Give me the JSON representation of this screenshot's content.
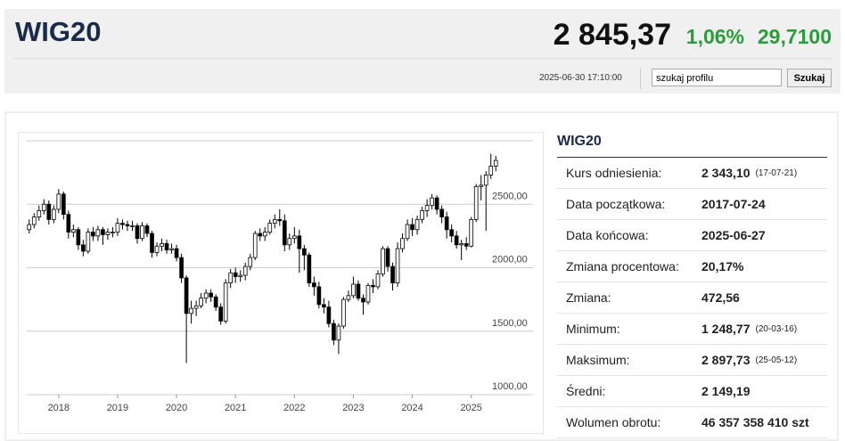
{
  "header": {
    "title": "WIG20",
    "price": "2 845,37",
    "change_pct": "1,06%",
    "change": "29,7100",
    "timestamp": "2025-06-30 17:10:00",
    "search_placeholder": "szukaj profilu",
    "search_button": "Szukaj"
  },
  "chart_data": {
    "type": "candlestick",
    "ylim": [
      1000,
      3000
    ],
    "yticks": [
      {
        "value": 1000,
        "label": "1000,00"
      },
      {
        "value": 1500,
        "label": "1500,00"
      },
      {
        "value": 2000,
        "label": "2000,00"
      },
      {
        "value": 2500,
        "label": "2500,00"
      }
    ],
    "categories": [
      null,
      null,
      null,
      null,
      null,
      null,
      "2018",
      null,
      null,
      null,
      null,
      null,
      null,
      null,
      null,
      null,
      null,
      null,
      "2019",
      null,
      null,
      null,
      null,
      null,
      null,
      null,
      null,
      null,
      null,
      null,
      "2020",
      null,
      null,
      null,
      null,
      null,
      null,
      null,
      null,
      null,
      null,
      null,
      "2021",
      null,
      null,
      null,
      null,
      null,
      null,
      null,
      null,
      null,
      null,
      null,
      "2022",
      null,
      null,
      null,
      null,
      null,
      null,
      null,
      null,
      null,
      null,
      null,
      "2023",
      null,
      null,
      null,
      null,
      null,
      null,
      null,
      null,
      null,
      null,
      null,
      "2024",
      null,
      null,
      null,
      null,
      null,
      null,
      null,
      null,
      null,
      null,
      null,
      "2025",
      null,
      null,
      null,
      null,
      null
    ],
    "open": [
      2300,
      2340,
      2400,
      2450,
      2500,
      2380,
      2460,
      2580,
      2420,
      2280,
      2300,
      2180,
      2130,
      2280,
      2250,
      2300,
      2260,
      2280,
      2280,
      2350,
      2340,
      2330,
      2330,
      2230,
      2330,
      2270,
      2120,
      2170,
      2190,
      2140,
      2150,
      2080,
      1920,
      1640,
      1680,
      1700,
      1760,
      1800,
      1770,
      1690,
      1580,
      1880,
      1960,
      1930,
      1940,
      2010,
      2080,
      2270,
      2250,
      2280,
      2350,
      2380,
      2370,
      2180,
      2230,
      2250,
      2150,
      2100,
      1880,
      1850,
      1710,
      1690,
      1560,
      1430,
      1540,
      1750,
      1780,
      1870,
      1760,
      1730,
      1860,
      1850,
      1950,
      2150,
      2010,
      1880,
      2150,
      2230,
      2340,
      2300,
      2380,
      2450,
      2490,
      2550,
      2460,
      2400,
      2300,
      2250,
      2180,
      2190,
      2170,
      2380,
      2640,
      2650,
      2730,
      2800
    ],
    "high": [
      2380,
      2430,
      2490,
      2540,
      2530,
      2490,
      2620,
      2600,
      2450,
      2340,
      2320,
      2220,
      2310,
      2320,
      2330,
      2320,
      2310,
      2320,
      2390,
      2380,
      2370,
      2370,
      2350,
      2360,
      2350,
      2290,
      2200,
      2230,
      2220,
      2190,
      2180,
      2110,
      1940,
      1740,
      1740,
      1800,
      1830,
      1830,
      1790,
      1720,
      1910,
      1990,
      2000,
      1980,
      2040,
      2110,
      2290,
      2310,
      2320,
      2380,
      2420,
      2460,
      2420,
      2270,
      2320,
      2300,
      2180,
      2120,
      1930,
      1890,
      1760,
      1740,
      1590,
      1560,
      1770,
      1820,
      1930,
      1900,
      1790,
      1880,
      1910,
      1980,
      2170,
      2170,
      2040,
      2200,
      2270,
      2380,
      2390,
      2410,
      2480,
      2540,
      2580,
      2570,
      2490,
      2440,
      2340,
      2290,
      2220,
      2240,
      2400,
      2660,
      2730,
      2760,
      2898,
      2880
    ],
    "low": [
      2270,
      2310,
      2370,
      2420,
      2340,
      2350,
      2430,
      2380,
      2230,
      2240,
      2140,
      2090,
      2110,
      2210,
      2210,
      2180,
      2220,
      2240,
      2250,
      2300,
      2290,
      2290,
      2190,
      2210,
      2240,
      2080,
      2090,
      2130,
      2110,
      2110,
      2050,
      1880,
      1249,
      1560,
      1620,
      1680,
      1720,
      1730,
      1660,
      1550,
      1560,
      1840,
      1880,
      1890,
      1900,
      1980,
      2060,
      2210,
      2210,
      2260,
      2310,
      2330,
      2130,
      2140,
      2190,
      1960,
      1980,
      1850,
      1780,
      1680,
      1640,
      1530,
      1390,
      1320,
      1520,
      1730,
      1760,
      1740,
      1630,
      1710,
      1800,
      1830,
      1930,
      1970,
      1820,
      1850,
      2120,
      2210,
      2250,
      2260,
      2350,
      2400,
      2460,
      2420,
      2350,
      2230,
      2200,
      2150,
      2060,
      2140,
      2160,
      2360,
      2530,
      2290,
      2700,
      2760
    ],
    "close": [
      2340,
      2400,
      2450,
      2500,
      2380,
      2460,
      2580,
      2420,
      2280,
      2300,
      2180,
      2130,
      2280,
      2250,
      2300,
      2260,
      2280,
      2280,
      2350,
      2340,
      2330,
      2330,
      2230,
      2330,
      2270,
      2120,
      2170,
      2190,
      2140,
      2150,
      2080,
      1920,
      1640,
      1680,
      1700,
      1760,
      1800,
      1770,
      1690,
      1580,
      1880,
      1960,
      1930,
      1940,
      2010,
      2080,
      2270,
      2250,
      2280,
      2350,
      2380,
      2370,
      2180,
      2230,
      2250,
      2150,
      2100,
      1880,
      1850,
      1710,
      1690,
      1560,
      1430,
      1540,
      1750,
      1780,
      1870,
      1760,
      1730,
      1860,
      1850,
      1950,
      2150,
      2010,
      1880,
      2150,
      2230,
      2340,
      2300,
      2380,
      2450,
      2490,
      2550,
      2460,
      2400,
      2300,
      2250,
      2180,
      2190,
      2170,
      2380,
      2640,
      2650,
      2730,
      2800,
      2845
    ]
  },
  "stats": {
    "title": "WIG20",
    "rows": [
      {
        "label": "Kurs odniesienia:",
        "value": "2 343,10",
        "note": "(17-07-21)"
      },
      {
        "label": "Data początkowa:",
        "value": "2017-07-24"
      },
      {
        "label": "Data końcowa:",
        "value": "2025-06-27"
      },
      {
        "label": "Zmiana procentowa:",
        "value": "20,17%"
      },
      {
        "label": "Zmiana:",
        "value": "472,56"
      },
      {
        "label": "Minimum:",
        "value": "1 248,77",
        "note": "(20-03-16)"
      },
      {
        "label": "Maksimum:",
        "value": "2 897,73",
        "note": "(25-05-12)"
      },
      {
        "label": "Średni:",
        "value": "2 149,19"
      },
      {
        "label": "Wolumen obrotu:",
        "value": "46 357 358 410 szt"
      }
    ]
  }
}
